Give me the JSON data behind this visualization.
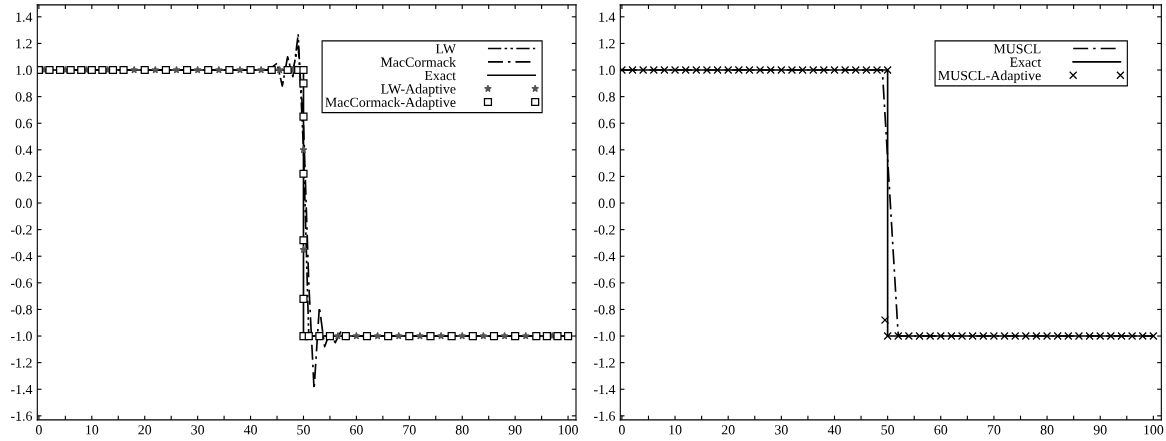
{
  "chart_data": [
    {
      "type": "line",
      "xlim": [
        -0.3,
        101.5
      ],
      "ylim": [
        -1.63,
        1.49
      ],
      "xticks": [
        0,
        {
          "value": 5,
          "label": null
        },
        10,
        {
          "value": 15,
          "label": null
        },
        20,
        {
          "value": 25,
          "label": null
        },
        30,
        {
          "value": 35,
          "label": null
        },
        40,
        {
          "value": 45,
          "label": null
        },
        50,
        {
          "value": 55,
          "label": null
        },
        60,
        {
          "value": 65,
          "label": null
        },
        70,
        {
          "value": 75,
          "label": null
        },
        80,
        {
          "value": 85,
          "label": null
        },
        90,
        {
          "value": 95,
          "label": null
        },
        100
      ],
      "yticks": [
        {
          "value": -1.6,
          "label": "-1.6"
        },
        {
          "value": -1.4,
          "label": "-1.4"
        },
        {
          "value": -1.2,
          "label": "-1.2"
        },
        {
          "value": -1.0,
          "label": "-1.0"
        },
        {
          "value": -0.8,
          "label": "-0.8"
        },
        {
          "value": -0.6,
          "label": "-0.6"
        },
        {
          "value": -0.4,
          "label": "-0.4"
        },
        {
          "value": -0.2,
          "label": "-0.2"
        },
        {
          "value": 0,
          "label": "0.0"
        },
        {
          "value": 0.2,
          "label": "0.2"
        },
        {
          "value": 0.4,
          "label": "0.4"
        },
        {
          "value": 0.6,
          "label": "0.6"
        },
        {
          "value": 0.8,
          "label": "0.8"
        },
        {
          "value": 1.0,
          "label": "1.0"
        },
        {
          "value": 1.2,
          "label": "1.2"
        },
        {
          "value": 1.4,
          "label": "1.4"
        }
      ],
      "grid": false,
      "legend": "top right",
      "series": [
        {
          "name": "LW",
          "line_style": "dashdotdot",
          "color": "#000000",
          "x": [
            0,
            43,
            44,
            45,
            46,
            47,
            48,
            49,
            50,
            51,
            100
          ],
          "values": [
            1.0,
            1.0,
            1.02,
            1.05,
            0.88,
            1.1,
            0.95,
            1.27,
            0.4,
            -1.0,
            -1.0
          ]
        },
        {
          "name": "MacCormack",
          "line_style": "dashdot",
          "color": "#000000",
          "x": [
            0,
            48,
            49,
            50,
            51,
            52,
            53,
            54,
            55,
            56,
            57,
            58,
            100
          ],
          "values": [
            1.0,
            1.0,
            1.18,
            0.6,
            -0.6,
            -1.4,
            -0.78,
            -1.08,
            -0.97,
            -1.05,
            -0.97,
            -1.0,
            -1.0
          ]
        },
        {
          "name": "Exact",
          "line_style": "solid",
          "color": "#000000",
          "x": [
            0,
            50,
            50,
            100
          ],
          "values": [
            1.0,
            1.0,
            -1.0,
            -1.0
          ]
        },
        {
          "name": "LW-Adaptive",
          "type": "scatter",
          "marker": "star",
          "color": "#555555",
          "x": [
            1,
            5,
            9,
            13,
            18,
            22,
            26,
            30,
            34,
            38,
            42,
            45.5,
            48,
            50,
            50,
            56.5,
            60,
            64,
            68,
            72,
            76,
            80,
            84,
            88,
            92,
            97
          ],
          "values": [
            1.0,
            1.0,
            1.0,
            1.0,
            1.0,
            1.0,
            1.0,
            1.0,
            1.0,
            1.0,
            1.0,
            1.0,
            1.0,
            0.4,
            -0.35,
            -1.0,
            -1.0,
            -1.0,
            -1.0,
            -1.0,
            -1.0,
            -1.0,
            -1.0,
            -1.0,
            -1.0,
            -1.0
          ]
        },
        {
          "name": "MacCormack-Adaptive",
          "type": "scatter",
          "marker": "square",
          "color": "#000000",
          "x": [
            0,
            2,
            4,
            6,
            8,
            10,
            12,
            14,
            16,
            20,
            24,
            28,
            32,
            36,
            40,
            44,
            47,
            49,
            50,
            50,
            50,
            50,
            50,
            50,
            50,
            51,
            53,
            55,
            58,
            62,
            66,
            70,
            74,
            78,
            82,
            86,
            90,
            94,
            96,
            98,
            100
          ],
          "values": [
            1.0,
            1.0,
            1.0,
            1.0,
            1.0,
            1.0,
            1.0,
            1.0,
            1.0,
            1.0,
            1.0,
            1.0,
            1.0,
            1.0,
            1.0,
            1.0,
            1.0,
            1.0,
            1.0,
            0.9,
            0.65,
            0.22,
            -0.28,
            -0.72,
            -1.0,
            -1.0,
            -1.0,
            -1.0,
            -1.0,
            -1.0,
            -1.0,
            -1.0,
            -1.0,
            -1.0,
            -1.0,
            -1.0,
            -1.0,
            -1.0,
            -1.0,
            -1.0,
            -1.0
          ]
        }
      ]
    },
    {
      "type": "line",
      "xlim": [
        -0.3,
        101.5
      ],
      "ylim": [
        -1.63,
        1.49
      ],
      "xticks": [
        0,
        {
          "value": 5,
          "label": null
        },
        10,
        {
          "value": 15,
          "label": null
        },
        20,
        {
          "value": 25,
          "label": null
        },
        30,
        {
          "value": 35,
          "label": null
        },
        40,
        {
          "value": 45,
          "label": null
        },
        50,
        {
          "value": 55,
          "label": null
        },
        60,
        {
          "value": 65,
          "label": null
        },
        70,
        {
          "value": 75,
          "label": null
        },
        80,
        {
          "value": 85,
          "label": null
        },
        90,
        {
          "value": 95,
          "label": null
        },
        100
      ],
      "yticks": [
        {
          "value": -1.6,
          "label": "-1.6"
        },
        {
          "value": -1.4,
          "label": "-1.4"
        },
        {
          "value": -1.2,
          "label": "-1.2"
        },
        {
          "value": -1.0,
          "label": "-1.0"
        },
        {
          "value": -0.8,
          "label": "-0.8"
        },
        {
          "value": -0.6,
          "label": "-0.6"
        },
        {
          "value": -0.4,
          "label": "-0.4"
        },
        {
          "value": -0.2,
          "label": "-0.2"
        },
        {
          "value": 0,
          "label": "0.0"
        },
        {
          "value": 0.2,
          "label": "0.2"
        },
        {
          "value": 0.4,
          "label": "0.4"
        },
        {
          "value": 0.6,
          "label": "0.6"
        },
        {
          "value": 0.8,
          "label": "0.8"
        },
        {
          "value": 1.0,
          "label": "1.0"
        },
        {
          "value": 1.2,
          "label": "1.2"
        },
        {
          "value": 1.4,
          "label": "1.4"
        }
      ],
      "grid": false,
      "legend": "top right",
      "series": [
        {
          "name": "MUSCL",
          "line_style": "dashdot",
          "color": "#000000",
          "x": [
            0,
            49,
            52,
            100
          ],
          "values": [
            1.0,
            1.0,
            -1.0,
            -1.0
          ]
        },
        {
          "name": "Exact",
          "line_style": "solid",
          "color": "#000000",
          "x": [
            0,
            50,
            50,
            100
          ],
          "values": [
            1.0,
            1.0,
            -1.0,
            -1.0
          ]
        },
        {
          "name": "MUSCL-Adaptive",
          "type": "scatter",
          "marker": "cross",
          "color": "#000000",
          "x": [
            0,
            2,
            4,
            6,
            8,
            10,
            12,
            14,
            16,
            18,
            20,
            22,
            24,
            26,
            28,
            30,
            32,
            34,
            36,
            38,
            40,
            42,
            44,
            46,
            48,
            50,
            49.5,
            50,
            52,
            54,
            56,
            58,
            60,
            62,
            64,
            66,
            68,
            70,
            72,
            74,
            76,
            78,
            80,
            82,
            84,
            86,
            88,
            90,
            92,
            94,
            96,
            98,
            100
          ],
          "values": [
            1.0,
            1.0,
            1.0,
            1.0,
            1.0,
            1.0,
            1.0,
            1.0,
            1.0,
            1.0,
            1.0,
            1.0,
            1.0,
            1.0,
            1.0,
            1.0,
            1.0,
            1.0,
            1.0,
            1.0,
            1.0,
            1.0,
            1.0,
            1.0,
            1.0,
            1.0,
            -0.88,
            -1.0,
            -1.0,
            -1.0,
            -1.0,
            -1.0,
            -1.0,
            -1.0,
            -1.0,
            -1.0,
            -1.0,
            -1.0,
            -1.0,
            -1.0,
            -1.0,
            -1.0,
            -1.0,
            -1.0,
            -1.0,
            -1.0,
            -1.0,
            -1.0,
            -1.0,
            -1.0,
            -1.0,
            -1.0,
            -1.0
          ]
        }
      ]
    }
  ]
}
